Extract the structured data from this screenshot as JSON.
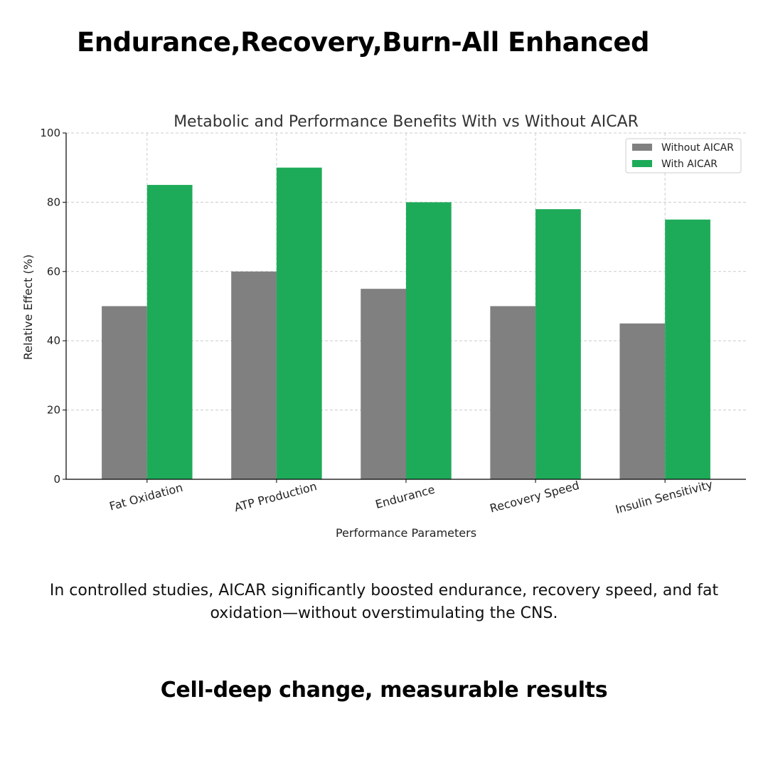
{
  "page": {
    "headline": "Endurance,Recovery,Burn-All Enhanced",
    "caption": "In controlled studies, AICAR significantly boosted endurance, recovery speed, and fat oxidation—without overstimulating the CNS.",
    "footer": "Cell-deep change, measurable results"
  },
  "chart_data": {
    "type": "bar",
    "title": "Metabolic and Performance Benefits With vs Without AICAR",
    "xlabel": "Performance Parameters",
    "ylabel": "Relative Effect (%)",
    "categories": [
      "Fat Oxidation",
      "ATP Production",
      "Endurance",
      "Recovery Speed",
      "Insulin Sensitivity"
    ],
    "series": [
      {
        "name": "Without AICAR",
        "values": [
          50,
          60,
          55,
          50,
          45
        ],
        "color": "#808080"
      },
      {
        "name": "With AICAR",
        "values": [
          85,
          90,
          80,
          78,
          75
        ],
        "color": "#1eab59"
      }
    ],
    "ylim": [
      0,
      100
    ],
    "yticks": [
      0,
      20,
      40,
      60,
      80,
      100
    ],
    "grid": true,
    "legend": "top-right"
  }
}
